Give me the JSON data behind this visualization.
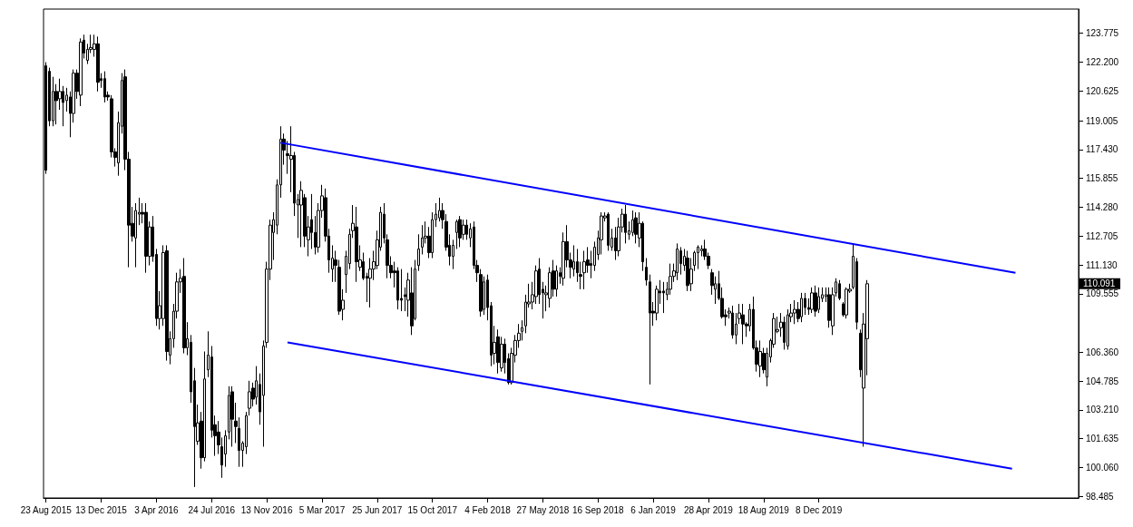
{
  "chart_data": {
    "type": "candlestick",
    "x": [
      "2015-08-23",
      "2015-08-30",
      "2015-09-06",
      "2015-09-13",
      "2015-09-20",
      "2015-09-27",
      "2015-10-04",
      "2015-10-11",
      "2015-10-18",
      "2015-10-25",
      "2015-11-01",
      "2015-11-08",
      "2015-11-15",
      "2015-11-22",
      "2015-11-29",
      "2015-12-06",
      "2015-12-13",
      "2015-12-20",
      "2015-12-27",
      "2016-01-03",
      "2016-01-10",
      "2016-01-17",
      "2016-01-24",
      "2016-01-31",
      "2016-02-07",
      "2016-02-14",
      "2016-02-21",
      "2016-02-28",
      "2016-03-06",
      "2016-03-13",
      "2016-03-20",
      "2016-03-27",
      "2016-04-03",
      "2016-04-10",
      "2016-04-17",
      "2016-04-24",
      "2016-05-01",
      "2016-05-08",
      "2016-05-15",
      "2016-05-22",
      "2016-05-29",
      "2016-06-05",
      "2016-06-12",
      "2016-06-19",
      "2016-06-26",
      "2016-07-03",
      "2016-07-10",
      "2016-07-17",
      "2016-07-24",
      "2016-07-31",
      "2016-08-07",
      "2016-08-14",
      "2016-08-21",
      "2016-08-28",
      "2016-09-04",
      "2016-09-11",
      "2016-09-18",
      "2016-09-25",
      "2016-10-02",
      "2016-10-09",
      "2016-10-16",
      "2016-10-23",
      "2016-10-30",
      "2016-11-06",
      "2016-11-13",
      "2016-11-20",
      "2016-11-27",
      "2016-12-04",
      "2016-12-11",
      "2016-12-18",
      "2016-12-25",
      "2017-01-01",
      "2017-01-08",
      "2017-01-15",
      "2017-01-22",
      "2017-01-29",
      "2017-02-05",
      "2017-02-12",
      "2017-02-19",
      "2017-02-26",
      "2017-03-05",
      "2017-03-12",
      "2017-03-19",
      "2017-03-26",
      "2017-04-02",
      "2017-04-09",
      "2017-04-16",
      "2017-04-23",
      "2017-04-30",
      "2017-05-07",
      "2017-05-14",
      "2017-05-21",
      "2017-05-28",
      "2017-06-04",
      "2017-06-11",
      "2017-06-18",
      "2017-06-25",
      "2017-07-02",
      "2017-07-09",
      "2017-07-16",
      "2017-07-23",
      "2017-07-30",
      "2017-08-06",
      "2017-08-13",
      "2017-08-20",
      "2017-08-27",
      "2017-09-03",
      "2017-09-10",
      "2017-09-17",
      "2017-09-24",
      "2017-10-01",
      "2017-10-08",
      "2017-10-15",
      "2017-10-22",
      "2017-10-29",
      "2017-11-05",
      "2017-11-12",
      "2017-11-19",
      "2017-11-26",
      "2017-12-03",
      "2017-12-10",
      "2017-12-17",
      "2017-12-24",
      "2017-12-31",
      "2018-01-07",
      "2018-01-14",
      "2018-01-21",
      "2018-01-28",
      "2018-02-04",
      "2018-02-11",
      "2018-02-18",
      "2018-02-25",
      "2018-03-04",
      "2018-03-11",
      "2018-03-18",
      "2018-03-25",
      "2018-04-01",
      "2018-04-08",
      "2018-04-15",
      "2018-04-22",
      "2018-04-29",
      "2018-05-06",
      "2018-05-13",
      "2018-05-20",
      "2018-05-27",
      "2018-06-03",
      "2018-06-10",
      "2018-06-17",
      "2018-06-24",
      "2018-07-01",
      "2018-07-08",
      "2018-07-15",
      "2018-07-22",
      "2018-07-29",
      "2018-08-05",
      "2018-08-12",
      "2018-08-19",
      "2018-08-26",
      "2018-09-02",
      "2018-09-09",
      "2018-09-16",
      "2018-09-23",
      "2018-09-30",
      "2018-10-07",
      "2018-10-14",
      "2018-10-21",
      "2018-10-28",
      "2018-11-04",
      "2018-11-11",
      "2018-11-18",
      "2018-11-25",
      "2018-12-02",
      "2018-12-09",
      "2018-12-16",
      "2018-12-23",
      "2018-12-30",
      "2019-01-06",
      "2019-01-13",
      "2019-01-20",
      "2019-01-27",
      "2019-02-03",
      "2019-02-10",
      "2019-02-17",
      "2019-02-24",
      "2019-03-03",
      "2019-03-10",
      "2019-03-17",
      "2019-03-24",
      "2019-03-31",
      "2019-04-07",
      "2019-04-14",
      "2019-04-21",
      "2019-04-28",
      "2019-05-05",
      "2019-05-12",
      "2019-05-19",
      "2019-05-26",
      "2019-06-02",
      "2019-06-09",
      "2019-06-16",
      "2019-06-23",
      "2019-06-30",
      "2019-07-07",
      "2019-07-14",
      "2019-07-21",
      "2019-07-28",
      "2019-08-04",
      "2019-08-11",
      "2019-08-18",
      "2019-08-25",
      "2019-09-01",
      "2019-09-08",
      "2019-09-15",
      "2019-09-22",
      "2019-09-29",
      "2019-10-06",
      "2019-10-13",
      "2019-10-20",
      "2019-10-27",
      "2019-11-03",
      "2019-11-10",
      "2019-11-17",
      "2019-11-24",
      "2019-12-01",
      "2019-12-08",
      "2019-12-15",
      "2019-12-22",
      "2019-12-29",
      "2020-01-05",
      "2020-01-12",
      "2020-01-19",
      "2020-01-26",
      "2020-02-02",
      "2020-02-09",
      "2020-02-16",
      "2020-02-23",
      "2020-03-01",
      "2020-03-08",
      "2020-03-15"
    ],
    "ohlc": [
      [
        122.0,
        122.2,
        116.1,
        116.3
      ],
      [
        121.7,
        121.9,
        118.7,
        119.0
      ],
      [
        119.0,
        121.4,
        118.7,
        120.6
      ],
      [
        120.6,
        121.0,
        118.8,
        120.1
      ],
      [
        120.2,
        121.3,
        119.6,
        120.6
      ],
      [
        120.6,
        120.9,
        118.7,
        120.0
      ],
      [
        120.1,
        120.8,
        119.5,
        120.4
      ],
      [
        120.3,
        120.6,
        118.1,
        119.4
      ],
      [
        119.4,
        121.8,
        118.9,
        121.6
      ],
      [
        121.6,
        121.8,
        120.2,
        120.6
      ],
      [
        120.4,
        123.5,
        119.8,
        123.3
      ],
      [
        123.4,
        123.7,
        122.4,
        122.7
      ],
      [
        122.3,
        123.2,
        122.1,
        122.9
      ],
      [
        122.9,
        123.7,
        122.7,
        123.0
      ],
      [
        122.9,
        123.7,
        122.5,
        123.2
      ],
      [
        123.2,
        123.6,
        120.6,
        121.1
      ],
      [
        121.3,
        121.6,
        120.8,
        121.2
      ],
      [
        121.3,
        121.7,
        120.0,
        120.3
      ],
      [
        120.4,
        120.6,
        120.1,
        120.3
      ],
      [
        120.2,
        120.4,
        117.0,
        117.3
      ],
      [
        117.3,
        117.5,
        116.5,
        117.0
      ],
      [
        116.7,
        119.5,
        116.0,
        118.9
      ],
      [
        118.7,
        121.6,
        118.3,
        121.2
      ],
      [
        121.4,
        121.8,
        116.3,
        116.9
      ],
      [
        116.9,
        117.3,
        111.0,
        113.3
      ],
      [
        113.4,
        114.3,
        112.4,
        112.7
      ],
      [
        112.6,
        114.5,
        111.0,
        114.1
      ],
      [
        113.9,
        114.8,
        113.3,
        114.0
      ],
      [
        114.0,
        114.5,
        113.4,
        113.9
      ],
      [
        114.0,
        114.5,
        110.7,
        111.6
      ],
      [
        111.6,
        113.5,
        111.1,
        113.2
      ],
      [
        113.2,
        113.8,
        111.3,
        111.6
      ],
      [
        111.7,
        112.0,
        107.8,
        108.2
      ],
      [
        108.2,
        109.7,
        107.6,
        108.9
      ],
      [
        108.2,
        112.2,
        107.8,
        111.8
      ],
      [
        111.9,
        112.2,
        105.9,
        106.4
      ],
      [
        106.2,
        107.5,
        105.7,
        107.1
      ],
      [
        107.1,
        109.0,
        106.6,
        108.6
      ],
      [
        108.6,
        110.7,
        108.2,
        110.2
      ],
      [
        110.2,
        110.9,
        109.6,
        110.4
      ],
      [
        110.5,
        111.5,
        106.3,
        106.6
      ],
      [
        106.6,
        108.0,
        106.2,
        107.1
      ],
      [
        106.9,
        107.3,
        103.6,
        104.2
      ],
      [
        104.8,
        105.5,
        99.0,
        102.3
      ],
      [
        101.5,
        103.5,
        101.3,
        102.5
      ],
      [
        102.6,
        103.1,
        100.0,
        100.6
      ],
      [
        100.6,
        106.4,
        100.4,
        104.9
      ],
      [
        105.4,
        107.5,
        105.0,
        106.2
      ],
      [
        106.1,
        106.7,
        101.7,
        102.1
      ],
      [
        102.4,
        102.9,
        100.7,
        101.8
      ],
      [
        102.0,
        102.6,
        100.8,
        101.3
      ],
      [
        101.2,
        101.7,
        99.5,
        100.2
      ],
      [
        100.8,
        102.1,
        100.1,
        101.8
      ],
      [
        102.0,
        104.5,
        101.6,
        104.0
      ],
      [
        104.2,
        104.5,
        101.2,
        102.7
      ],
      [
        102.6,
        103.6,
        101.4,
        102.3
      ],
      [
        102.2,
        102.8,
        100.1,
        101.0
      ],
      [
        101.0,
        101.5,
        100.1,
        101.4
      ],
      [
        101.2,
        103.1,
        100.8,
        102.9
      ],
      [
        103.3,
        104.8,
        102.9,
        104.2
      ],
      [
        104.4,
        104.7,
        103.4,
        103.8
      ],
      [
        103.9,
        105.6,
        103.5,
        104.8
      ],
      [
        104.6,
        105.2,
        102.4,
        103.1
      ],
      [
        104.0,
        107.0,
        101.2,
        106.7
      ],
      [
        106.9,
        111.3,
        106.6,
        110.9
      ],
      [
        110.9,
        113.6,
        110.3,
        113.3
      ],
      [
        112.9,
        114.0,
        111.4,
        113.6
      ],
      [
        113.3,
        115.8,
        112.8,
        115.5
      ],
      [
        115.5,
        118.7,
        114.8,
        118.0
      ],
      [
        118.0,
        118.3,
        116.6,
        117.4
      ],
      [
        117.2,
        117.9,
        116.1,
        117.1
      ],
      [
        116.9,
        118.7,
        115.1,
        117.1
      ],
      [
        117.1,
        117.3,
        113.8,
        114.5
      ],
      [
        114.4,
        115.0,
        112.6,
        114.7
      ],
      [
        114.4,
        115.7,
        112.1,
        115.2
      ],
      [
        114.8,
        115.0,
        112.1,
        112.7
      ],
      [
        112.5,
        113.8,
        111.6,
        113.2
      ],
      [
        113.6,
        115.0,
        112.0,
        112.9
      ],
      [
        112.9,
        113.8,
        111.7,
        112.1
      ],
      [
        112.1,
        114.5,
        111.8,
        114.1
      ],
      [
        114.1,
        115.5,
        113.7,
        114.9
      ],
      [
        114.8,
        115.3,
        112.4,
        112.7
      ],
      [
        112.7,
        113.1,
        110.7,
        111.4
      ],
      [
        110.9,
        112.2,
        110.2,
        111.5
      ],
      [
        111.4,
        111.9,
        110.2,
        111.1
      ],
      [
        111.0,
        111.4,
        108.4,
        108.6
      ],
      [
        108.7,
        109.8,
        108.1,
        109.2
      ],
      [
        110.6,
        111.9,
        109.6,
        111.6
      ],
      [
        111.2,
        113.1,
        110.9,
        112.8
      ],
      [
        113.0,
        114.4,
        112.6,
        113.4
      ],
      [
        113.2,
        114.3,
        110.2,
        111.3
      ],
      [
        111.0,
        112.2,
        110.8,
        111.4
      ],
      [
        111.3,
        111.8,
        110.3,
        110.4
      ],
      [
        110.5,
        110.7,
        109.1,
        110.4
      ],
      [
        110.4,
        111.5,
        108.8,
        110.9
      ],
      [
        110.9,
        111.9,
        110.3,
        111.3
      ],
      [
        111.1,
        113.0,
        110.9,
        112.5
      ],
      [
        112.1,
        114.3,
        111.9,
        114.0
      ],
      [
        113.9,
        114.5,
        112.3,
        112.6
      ],
      [
        112.5,
        112.8,
        110.4,
        111.1
      ],
      [
        111.1,
        111.6,
        110.4,
        110.7
      ],
      [
        110.8,
        111.3,
        109.9,
        110.7
      ],
      [
        110.8,
        111.0,
        108.7,
        109.2
      ],
      [
        109.3,
        110.9,
        108.6,
        109.2
      ],
      [
        109.5,
        109.9,
        108.6,
        109.4
      ],
      [
        109.2,
        110.7,
        108.3,
        110.3
      ],
      [
        109.6,
        111.0,
        107.3,
        107.8
      ],
      [
        108.2,
        111.4,
        108.1,
        110.9
      ],
      [
        111.1,
        112.8,
        110.8,
        112.0
      ],
      [
        112.1,
        113.3,
        111.7,
        112.6
      ],
      [
        112.6,
        113.5,
        112.3,
        112.7
      ],
      [
        112.7,
        113.2,
        111.5,
        111.8
      ],
      [
        111.8,
        114.0,
        111.5,
        113.6
      ],
      [
        113.6,
        114.5,
        113.2,
        113.9
      ],
      [
        113.7,
        114.8,
        113.5,
        114.1
      ],
      [
        114.1,
        114.5,
        113.1,
        113.6
      ],
      [
        113.5,
        113.9,
        111.9,
        112.1
      ],
      [
        112.2,
        112.8,
        111.1,
        111.6
      ],
      [
        111.6,
        112.5,
        110.9,
        112.2
      ],
      [
        112.9,
        113.6,
        112.0,
        113.5
      ],
      [
        113.6,
        113.8,
        112.1,
        112.6
      ],
      [
        112.8,
        113.6,
        112.5,
        113.3
      ],
      [
        113.3,
        113.6,
        112.5,
        112.8
      ],
      [
        112.6,
        113.4,
        112.1,
        113.1
      ],
      [
        113.2,
        113.5,
        110.9,
        111.1
      ],
      [
        111.1,
        111.4,
        110.2,
        110.7
      ],
      [
        110.6,
        110.9,
        108.3,
        108.6
      ],
      [
        108.7,
        110.5,
        108.4,
        110.2
      ],
      [
        110.3,
        110.6,
        108.1,
        108.8
      ],
      [
        108.9,
        109.1,
        105.6,
        106.2
      ],
      [
        106.3,
        107.8,
        105.7,
        106.9
      ],
      [
        107.2,
        107.6,
        105.2,
        105.8
      ],
      [
        105.5,
        107.2,
        105.3,
        106.8
      ],
      [
        106.8,
        107.1,
        105.2,
        105.8
      ],
      [
        106.0,
        106.3,
        104.6,
        104.7
      ],
      [
        104.7,
        106.6,
        104.6,
        106.3
      ],
      [
        106.2,
        107.3,
        105.8,
        107.0
      ],
      [
        107.0,
        107.9,
        106.6,
        107.4
      ],
      [
        107.5,
        108.1,
        107.0,
        107.7
      ],
      [
        107.8,
        109.5,
        107.4,
        109.1
      ],
      [
        109.0,
        110.1,
        108.8,
        109.1
      ],
      [
        109.1,
        110.2,
        108.7,
        109.5
      ],
      [
        109.4,
        111.1,
        109.0,
        110.8
      ],
      [
        110.9,
        111.5,
        109.0,
        109.5
      ],
      [
        109.8,
        110.2,
        108.2,
        109.6
      ],
      [
        109.5,
        110.0,
        108.6,
        109.6
      ],
      [
        109.3,
        111.0,
        108.8,
        110.7
      ],
      [
        110.8,
        111.4,
        109.4,
        109.8
      ],
      [
        109.8,
        111.1,
        109.4,
        110.8
      ],
      [
        110.7,
        111.0,
        110.1,
        110.5
      ],
      [
        110.4,
        112.9,
        110.0,
        112.4
      ],
      [
        112.4,
        113.3,
        111.0,
        111.4
      ],
      [
        111.4,
        111.8,
        110.4,
        111.0
      ],
      [
        110.9,
        112.2,
        110.5,
        111.3
      ],
      [
        111.3,
        112.0,
        110.2,
        110.7
      ],
      [
        110.6,
        111.3,
        109.8,
        110.5
      ],
      [
        110.7,
        111.9,
        109.8,
        111.3
      ],
      [
        111.4,
        112.1,
        110.7,
        111.1
      ],
      [
        111.2,
        111.9,
        110.4,
        111.1
      ],
      [
        111.1,
        112.4,
        110.8,
        112.1
      ],
      [
        111.7,
        113.0,
        111.4,
        112.6
      ],
      [
        112.5,
        114.0,
        111.7,
        113.8
      ],
      [
        113.7,
        114.0,
        113.5,
        113.8
      ],
      [
        113.9,
        114.0,
        111.9,
        112.2
      ],
      [
        112.1,
        113.1,
        111.9,
        112.6
      ],
      [
        112.6,
        113.2,
        111.4,
        111.9
      ],
      [
        111.9,
        113.7,
        111.6,
        113.2
      ],
      [
        113.2,
        114.2,
        112.9,
        113.9
      ],
      [
        113.9,
        114.4,
        112.3,
        112.9
      ],
      [
        112.8,
        113.5,
        112.5,
        113.0
      ],
      [
        112.9,
        114.1,
        112.7,
        113.6
      ],
      [
        113.7,
        114.0,
        112.3,
        112.8
      ],
      [
        112.6,
        114.0,
        112.1,
        113.4
      ],
      [
        113.4,
        113.5,
        110.8,
        111.3
      ],
      [
        111.0,
        111.5,
        110.0,
        110.3
      ],
      [
        110.2,
        110.6,
        104.6,
        108.5
      ],
      [
        108.6,
        109.1,
        107.8,
        108.5
      ],
      [
        108.5,
        110.0,
        108.1,
        109.8
      ],
      [
        109.7,
        110.3,
        109.0,
        109.6
      ],
      [
        109.7,
        110.2,
        108.5,
        109.6
      ],
      [
        109.5,
        110.2,
        109.2,
        109.8
      ],
      [
        109.8,
        111.2,
        109.5,
        110.5
      ],
      [
        110.5,
        111.2,
        110.2,
        110.8
      ],
      [
        110.7,
        112.3,
        110.3,
        112.0
      ],
      [
        111.9,
        112.1,
        110.6,
        111.2
      ],
      [
        111.1,
        112.0,
        110.8,
        111.6
      ],
      [
        111.5,
        111.9,
        109.7,
        110.0
      ],
      [
        110.1,
        111.5,
        109.7,
        110.9
      ],
      [
        111.1,
        111.9,
        110.8,
        111.8
      ],
      [
        111.8,
        112.2,
        110.9,
        112.1
      ],
      [
        111.9,
        112.2,
        111.6,
        112.0
      ],
      [
        112.0,
        112.5,
        111.4,
        111.6
      ],
      [
        111.6,
        111.8,
        110.9,
        111.1
      ],
      [
        110.7,
        110.9,
        109.5,
        110.0
      ],
      [
        109.8,
        110.5,
        109.0,
        110.1
      ],
      [
        110.1,
        110.8,
        109.2,
        109.3
      ],
      [
        109.3,
        109.9,
        108.2,
        108.3
      ],
      [
        108.4,
        108.7,
        107.8,
        108.3
      ],
      [
        108.5,
        108.8,
        108.2,
        108.6
      ],
      [
        108.5,
        108.9,
        107.1,
        107.3
      ],
      [
        107.3,
        108.5,
        106.8,
        107.9
      ],
      [
        108.2,
        109.0,
        107.9,
        108.5
      ],
      [
        108.4,
        109.0,
        106.8,
        107.9
      ],
      [
        107.9,
        108.0,
        107.2,
        107.8
      ],
      [
        107.8,
        109.0,
        107.5,
        108.7
      ],
      [
        108.7,
        109.4,
        106.5,
        106.6
      ],
      [
        106.6,
        107.0,
        105.3,
        105.7
      ],
      [
        105.6,
        107.0,
        105.0,
        106.4
      ],
      [
        106.3,
        106.6,
        105.2,
        105.4
      ],
      [
        105.0,
        106.6,
        104.5,
        106.3
      ],
      [
        106.1,
        107.1,
        105.8,
        107.0
      ],
      [
        106.8,
        108.5,
        106.6,
        108.2
      ],
      [
        107.5,
        108.3,
        107.4,
        107.6
      ],
      [
        107.7,
        108.5,
        107.2,
        108.0
      ],
      [
        108.0,
        108.3,
        106.5,
        106.9
      ],
      [
        106.7,
        108.7,
        106.5,
        108.4
      ],
      [
        108.3,
        109.0,
        108.0,
        108.5
      ],
      [
        108.5,
        109.2,
        107.9,
        108.7
      ],
      [
        108.7,
        109.1,
        108.0,
        108.2
      ],
      [
        108.3,
        109.6,
        108.0,
        109.3
      ],
      [
        109.3,
        109.6,
        108.4,
        108.8
      ],
      [
        108.8,
        109.3,
        108.4,
        108.7
      ],
      [
        108.7,
        109.9,
        108.5,
        109.6
      ],
      [
        109.6,
        110.0,
        108.3,
        108.6
      ],
      [
        108.7,
        109.9,
        108.5,
        109.4
      ],
      [
        109.3,
        109.9,
        109.1,
        109.5
      ],
      [
        109.4,
        109.9,
        109.1,
        109.5
      ],
      [
        109.5,
        109.9,
        107.7,
        108.1
      ],
      [
        107.8,
        109.9,
        107.3,
        109.5
      ],
      [
        109.6,
        110.4,
        109.4,
        110.2
      ],
      [
        110.1,
        110.3,
        109.2,
        109.3
      ],
      [
        109.0,
        109.1,
        108.3,
        108.4
      ],
      [
        108.4,
        109.9,
        108.2,
        109.8
      ],
      [
        109.7,
        110.1,
        109.6,
        109.8
      ],
      [
        109.9,
        112.3,
        109.8,
        111.6
      ],
      [
        111.3,
        111.5,
        107.6,
        108.0
      ],
      [
        107.4,
        107.6,
        105.0,
        105.4
      ],
      [
        104.4,
        108.5,
        101.2,
        107.9
      ],
      [
        107.1,
        110.3,
        105.1,
        110.1
      ]
    ],
    "series": [
      {
        "type": "line",
        "color": "#0000ff",
        "x": [
          "2016-12-11",
          "2021-01-10"
        ],
        "values": [
          117.8,
          110.7
        ]
      },
      {
        "type": "line",
        "color": "#0000ff",
        "x": [
          "2016-12-25",
          "2021-01-03"
        ],
        "values": [
          106.9,
          100.0
        ]
      }
    ],
    "xlim": [
      "2015-08-18",
      "2021-05-18"
    ],
    "xticks": [
      {
        "value": "2015-08-23",
        "label": "23 Aug 2015"
      },
      {
        "value": "2015-12-13",
        "label": "13 Dec 2015"
      },
      {
        "value": "2016-04-03",
        "label": "3 Apr 2016"
      },
      {
        "value": "2016-07-24",
        "label": "24 Jul 2016"
      },
      {
        "value": "2016-11-13",
        "label": "13 Nov 2016"
      },
      {
        "value": "2017-03-05",
        "label": "5 Mar 2017"
      },
      {
        "value": "2017-06-25",
        "label": "25 Jun 2017"
      },
      {
        "value": "2017-10-15",
        "label": "15 Oct 2017"
      },
      {
        "value": "2018-02-04",
        "label": "4 Feb 2018"
      },
      {
        "value": "2018-05-27",
        "label": "27 May 2018"
      },
      {
        "value": "2018-09-16",
        "label": "16 Sep 2018"
      },
      {
        "value": "2019-01-06",
        "label": "6 Jan 2019"
      },
      {
        "value": "2019-04-28",
        "label": "28 Apr 2019"
      },
      {
        "value": "2019-08-18",
        "label": "18 Aug 2019"
      },
      {
        "value": "2019-12-08",
        "label": "8 Dec 2019"
      }
    ],
    "ylim": [
      98.4,
      125.1
    ],
    "yticks": [
      98.485,
      {
        "value": 100.06,
        "label": "100.060"
      },
      101.635,
      {
        "value": 103.21,
        "label": "103.210"
      },
      104.785,
      {
        "value": 106.36,
        "label": "106.360"
      },
      109.555,
      {
        "value": 111.13,
        "label": "111.130"
      },
      112.705,
      {
        "value": 114.28,
        "label": "114.280"
      },
      115.855,
      {
        "value": 117.43,
        "label": "117.430"
      },
      119.005,
      120.625,
      {
        "value": 122.2,
        "label": "122.200"
      },
      123.775
    ],
    "annotations": [
      "110.091"
    ]
  }
}
